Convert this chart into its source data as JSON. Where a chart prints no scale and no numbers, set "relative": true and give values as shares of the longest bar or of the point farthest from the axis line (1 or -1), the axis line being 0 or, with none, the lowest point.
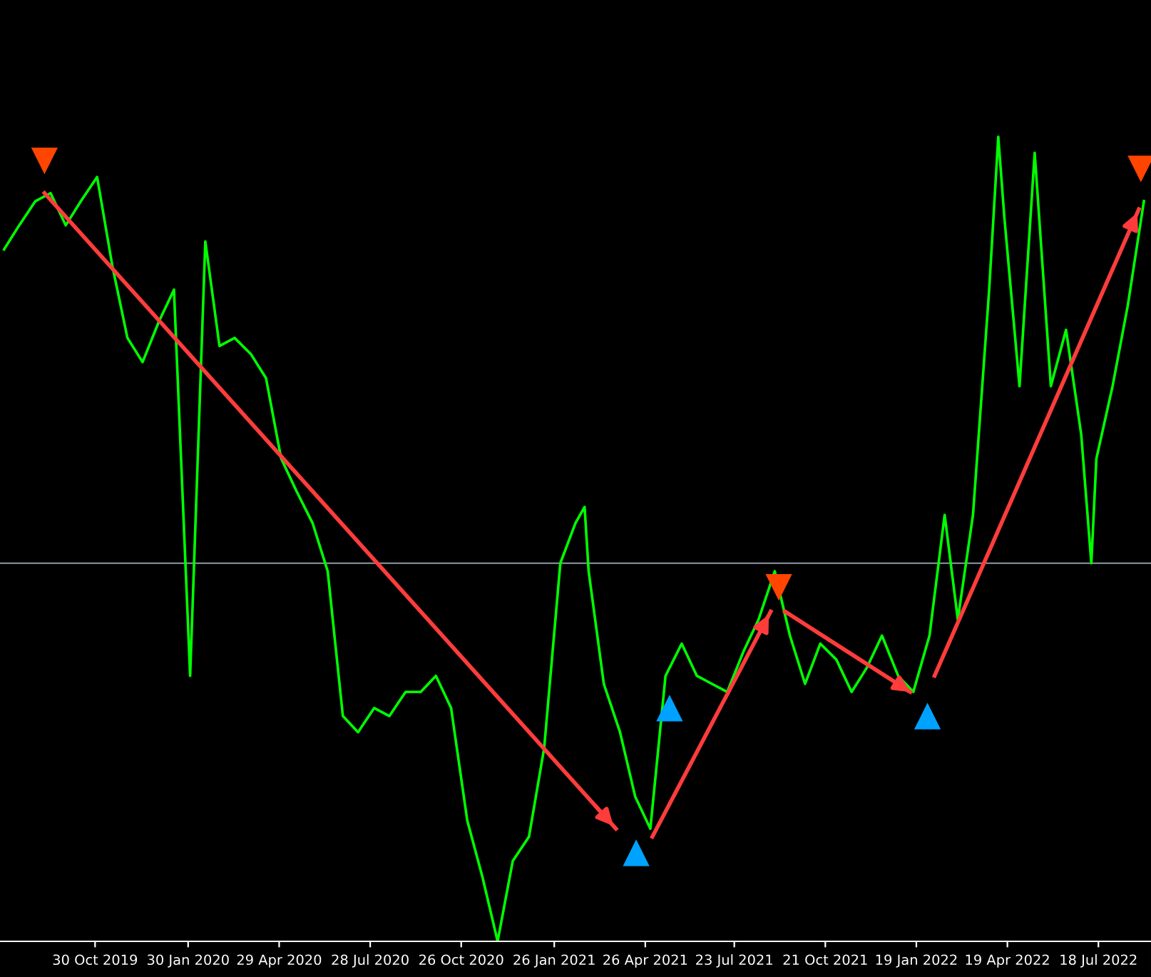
{
  "chart_data": {
    "type": "line",
    "relative": true,
    "grid": false,
    "legend": false,
    "tick_labels": "x",
    "xlim": [
      "2019-07-28",
      "2022-09-08"
    ],
    "xticks": [
      {
        "value": "2019-10-30",
        "label": "30 Oct 2019"
      },
      {
        "value": "2020-01-30",
        "label": "30 Jan 2020"
      },
      {
        "value": "2020-04-29",
        "label": "29 Apr 2020"
      },
      {
        "value": "2020-07-28",
        "label": "28 Jul 2020"
      },
      {
        "value": "2020-10-26",
        "label": "26 Oct 2020"
      },
      {
        "value": "2021-01-26",
        "label": "26 Jan 2021"
      },
      {
        "value": "2021-04-26",
        "label": "26 Apr 2021"
      },
      {
        "value": "2021-07-23",
        "label": "23 Jul 2021"
      },
      {
        "value": "2021-10-21",
        "label": "21 Oct 2021"
      },
      {
        "value": "2022-01-19",
        "label": "19 Jan 2022"
      },
      {
        "value": "2022-04-19",
        "label": "19 Apr 2022"
      },
      {
        "value": "2022-07-18",
        "label": "18 Jul 2022"
      }
    ],
    "ref_lines": [
      {
        "axis": "y",
        "value": 0.47,
        "color": "#8c9aa6"
      }
    ],
    "series": [
      {
        "color": "#00ff00",
        "x": [
          "2019-08-01",
          "2019-08-16",
          "2019-09-01",
          "2019-09-16",
          "2019-10-01",
          "2019-10-16",
          "2019-11-01",
          "2019-11-16",
          "2019-12-01",
          "2019-12-16",
          "2020-01-01",
          "2020-01-16",
          "2020-02-01",
          "2020-02-16",
          "2020-03-01",
          "2020-03-16",
          "2020-04-01",
          "2020-04-16",
          "2020-05-01",
          "2020-05-16",
          "2020-06-01",
          "2020-06-16",
          "2020-07-01",
          "2020-07-16",
          "2020-08-01",
          "2020-08-16",
          "2020-09-01",
          "2020-09-16",
          "2020-10-01",
          "2020-10-16",
          "2020-11-01",
          "2020-11-16",
          "2020-12-01",
          "2020-12-16",
          "2021-01-01",
          "2021-01-16",
          "2021-02-01",
          "2021-02-16",
          "2021-02-25",
          "2021-03-01",
          "2021-03-16",
          "2021-04-01",
          "2021-04-16",
          "2021-05-01",
          "2021-05-16",
          "2021-06-01",
          "2021-06-16",
          "2021-07-01",
          "2021-07-16",
          "2021-08-01",
          "2021-08-16",
          "2021-09-01",
          "2021-09-16",
          "2021-10-01",
          "2021-10-16",
          "2021-11-01",
          "2021-11-16",
          "2021-12-01",
          "2021-12-16",
          "2022-01-01",
          "2022-01-16",
          "2022-02-01",
          "2022-02-16",
          "2022-03-01",
          "2022-03-16",
          "2022-04-01",
          "2022-04-10",
          "2022-04-16",
          "2022-05-01",
          "2022-05-16",
          "2022-06-01",
          "2022-06-16",
          "2022-07-01",
          "2022-07-11",
          "2022-07-16",
          "2022-08-01",
          "2022-08-16",
          "2022-09-01"
        ],
        "values": [
          0.86,
          0.89,
          0.92,
          0.93,
          0.89,
          0.92,
          0.95,
          0.84,
          0.75,
          0.72,
          0.77,
          0.81,
          0.33,
          0.87,
          0.74,
          0.75,
          0.73,
          0.7,
          0.6,
          0.56,
          0.52,
          0.46,
          0.28,
          0.26,
          0.29,
          0.28,
          0.31,
          0.31,
          0.33,
          0.29,
          0.15,
          0.08,
          0,
          0.1,
          0.13,
          0.24,
          0.47,
          0.52,
          0.54,
          0.46,
          0.32,
          0.26,
          0.18,
          0.14,
          0.33,
          0.37,
          0.33,
          0.32,
          0.31,
          0.36,
          0.4,
          0.46,
          0.38,
          0.32,
          0.37,
          0.35,
          0.31,
          0.34,
          0.38,
          0.33,
          0.31,
          0.38,
          0.53,
          0.4,
          0.53,
          0.81,
          1.0,
          0.9,
          0.69,
          0.98,
          0.69,
          0.76,
          0.63,
          0.47,
          0.6,
          0.69,
          0.79,
          0.92
        ]
      },
      {
        "type": "line",
        "color": "#ff3c3c",
        "x": [
          "2019-09-10",
          "2021-03-28",
          null,
          "2021-05-03",
          "2021-08-28",
          null,
          "2021-09-11",
          "2022-01-13",
          null,
          "2022-02-06",
          "2022-08-27"
        ],
        "values": [
          0.93,
          0.14,
          null,
          0.13,
          0.41,
          null,
          0.41,
          0.31,
          null,
          0.33,
          0.91
        ]
      },
      {
        "type": "scatter",
        "color": "#ff4500",
        "marker": "triangle",
        "x": [
          "2019-09-10",
          "2021-09-05",
          "2022-08-29"
        ],
        "values": [
          0.97,
          0.44,
          0.96
        ]
      },
      {
        "type": "scatter",
        "color": "#00a2ff",
        "marker": "triangle",
        "x": [
          "2021-04-17",
          "2021-05-20",
          "2022-01-30"
        ],
        "values": [
          0.11,
          0.29,
          0.28
        ]
      }
    ]
  }
}
